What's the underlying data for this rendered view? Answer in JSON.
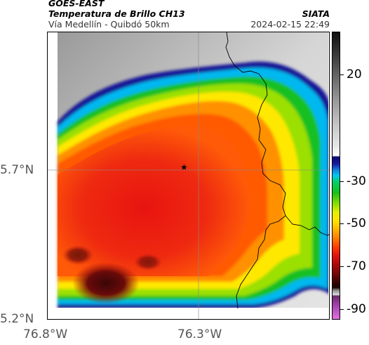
{
  "header": {
    "agency": "GOES-EAST",
    "product": "Temperatura de Brillo CH13",
    "region": "Vía Medellín - Quibdó 50km",
    "org": "SIATA",
    "datetime": "2024-02-15 22:49"
  },
  "axes": {
    "lat_labels": [
      "5.7°N",
      "5.2°N"
    ],
    "lon_labels": [
      "76.8°W",
      "76.3°W"
    ]
  },
  "colorbar": {
    "labels": [
      "20",
      "-30",
      "-50",
      "-70",
      "-90"
    ],
    "values": [
      20,
      -30,
      -50,
      -70,
      -90
    ],
    "range": [
      -95,
      40
    ],
    "colors": {
      "clear_warm": "#d8d8d8",
      "blue_edge": "#1a1a9a",
      "cyan": "#00c8ff",
      "green": "#1ec81e",
      "yellow": "#ffee00",
      "orange": "#ff8a00",
      "red": "#e01010",
      "dark_red": "#4a0a0a",
      "magenta": "#c040c0"
    }
  },
  "map": {
    "marker_icon": "star-icon"
  }
}
